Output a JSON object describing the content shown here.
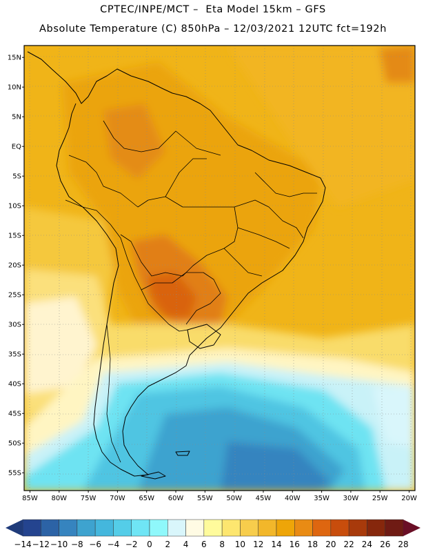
{
  "header": {
    "line1": "CPTEC/INPE/MCT –  Eta Model 15km – GFS",
    "line2": "Absolute Temperature (C) 850hPa – 12/03/2021 12UTC fct=192h"
  },
  "map": {
    "lat_labels": [
      "15N",
      "10N",
      "5N",
      "EQ",
      "5S",
      "10S",
      "15S",
      "20S",
      "25S",
      "30S",
      "35S",
      "40S",
      "45S",
      "50S",
      "55S"
    ],
    "lon_labels": [
      "85W",
      "80W",
      "75W",
      "70W",
      "65W",
      "60W",
      "55W",
      "50W",
      "45W",
      "40W",
      "35W",
      "30W",
      "25W",
      "20W"
    ],
    "lat_range": [
      17,
      -58
    ],
    "lon_range": [
      -86,
      -19
    ]
  },
  "colorbar": {
    "labels": [
      "-14",
      "-12",
      "-10",
      "-8",
      "-6",
      "-4",
      "-2",
      "0",
      "2",
      "4",
      "6",
      "8",
      "10",
      "12",
      "14",
      "16",
      "18",
      "20",
      "22",
      "24",
      "26",
      "28"
    ],
    "colors": [
      "#24448f",
      "#2c63a6",
      "#3684bf",
      "#3ea3cf",
      "#44b7dd",
      "#54cde8",
      "#6fe5f5",
      "#8ff8fb",
      "#d9f6fb",
      "#fffbe4",
      "#fffb9c",
      "#fde66f",
      "#f7cd4c",
      "#f2b72a",
      "#eea508",
      "#e98b14",
      "#de6610",
      "#c84d0c",
      "#a83a0b",
      "#86270c",
      "#6f1b14"
    ],
    "left_arrow_color": "#1f3b7a",
    "right_arrow_color": "#6a0f26"
  }
}
